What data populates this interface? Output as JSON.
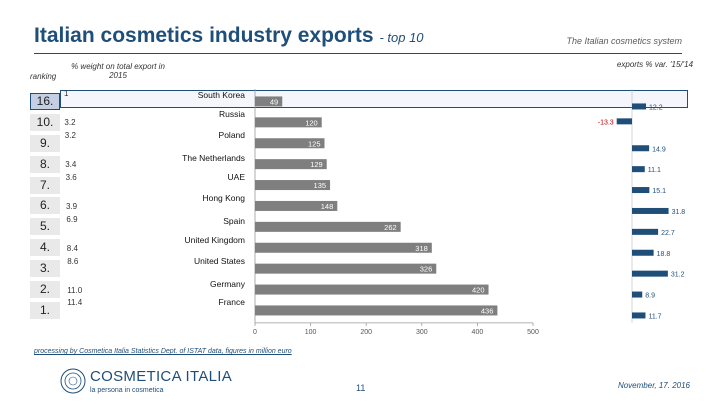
{
  "header": {
    "title": "Italian cosmetics industry exports",
    "subtitle": "- top 10",
    "section": "The Italian cosmetics system"
  },
  "columns": {
    "ranking": "ranking",
    "weight": "% weight on total export in 2015",
    "variation": "exports % var. '15/'14"
  },
  "chart_data": {
    "type": "bar",
    "title": "Italian cosmetics industry exports - top 10",
    "categories": [
      "South Korea",
      "Russia",
      "Poland",
      "The Netherlands",
      "UAE",
      "Hong Kong",
      "Spain",
      "United Kingdom",
      "United States",
      "Germany",
      "France"
    ],
    "ranking": [
      "16.",
      "10.",
      "9.",
      "8.",
      "7.",
      "6.",
      "5.",
      "4.",
      "3.",
      "2.",
      "1."
    ],
    "weight_pct": [
      "1",
      "3.2",
      "3.2",
      "3.4",
      "3.6",
      "3.9",
      "6.9",
      "8.4",
      "8.6",
      "11.0",
      "11.4"
    ],
    "values": [
      49,
      120,
      125,
      129,
      135,
      148,
      262,
      318,
      326,
      420,
      436
    ],
    "variation_pct": [
      12.2,
      -13.3,
      14.9,
      11.1,
      15.1,
      31.8,
      22.7,
      18.8,
      31.2,
      8.9,
      11.7
    ],
    "xlim": [
      0,
      500
    ],
    "xticks": [
      "0",
      "100",
      "200",
      "300",
      "400",
      "500"
    ],
    "highlight": "South Korea",
    "colors": {
      "exports_bar": "#7f7f7f",
      "variation_bar": "#1f4e79",
      "accent": "#1f4e79"
    }
  },
  "footer": {
    "source": "processing by Cosmetica Italia Statistics Dept. of ISTAT data, figures in million euro",
    "page": "11",
    "date": "November, 17. 2016",
    "logo_name": "COSMETICA ITALIA",
    "logo_tagline": "la persona in cosmetica"
  }
}
